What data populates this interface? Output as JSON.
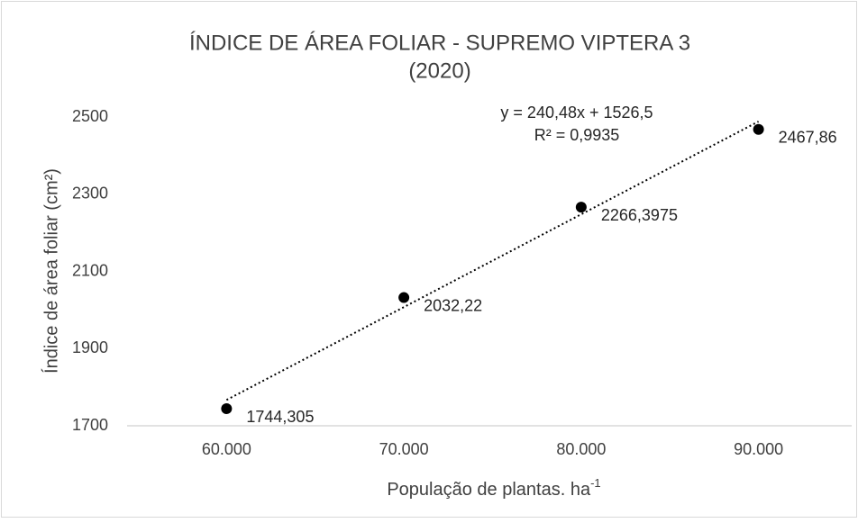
{
  "chart_data": {
    "type": "scatter",
    "title": [
      "ÍNDICE DE ÁREA FOLIAR - SUPREMO VIPTERA 3",
      "(2020)"
    ],
    "xlabel": [
      "População de plantas. ha",
      "-1"
    ],
    "ylabel": "Índice de área foliar (cm²)",
    "x": [
      60000,
      70000,
      80000,
      90000
    ],
    "values": [
      1744.305,
      2032.22,
      2266.3975,
      2467.86
    ],
    "value_labels": [
      "1744,305",
      "2032,22",
      "2266,3975",
      "2467,86"
    ],
    "color": "#000000",
    "xlim": [
      55000,
      95000
    ],
    "xticks": [
      {
        "value": 60000,
        "label": "60.000"
      },
      {
        "value": 70000,
        "label": "70.000"
      },
      {
        "value": 80000,
        "label": "80.000"
      },
      {
        "value": 90000,
        "label": "90.000"
      }
    ],
    "ylim": [
      1700,
      2500
    ],
    "yticks": [
      1700,
      1900,
      2100,
      2300,
      2500
    ],
    "trendline_equation": "y = 240,48x + 1526,5",
    "trendline_r2": "R² = 0,9935",
    "grid": false
  }
}
